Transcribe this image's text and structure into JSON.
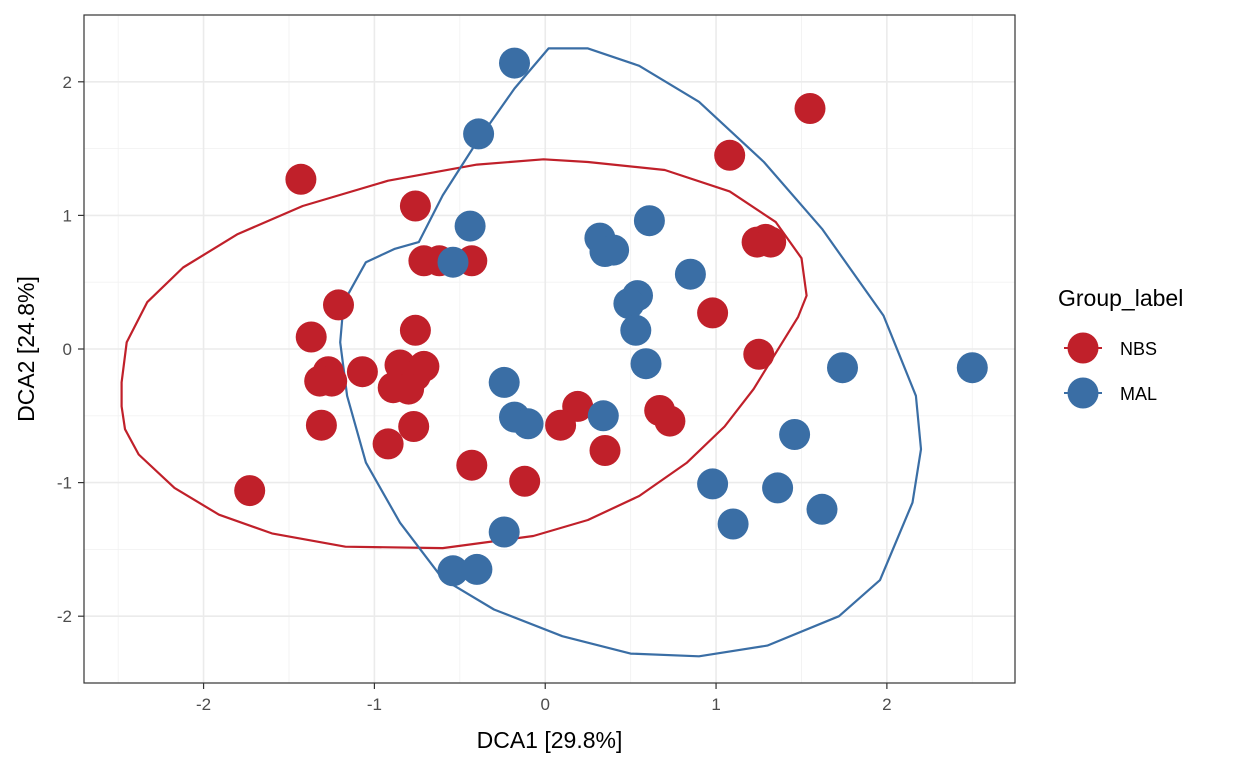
{
  "chart_data": {
    "type": "scatter",
    "xlabel": "DCA1   [29.8%]",
    "ylabel": "DCA2   [24.8%]",
    "xlim": [
      -2.7,
      2.75
    ],
    "ylim": [
      -2.5,
      2.5
    ],
    "x_ticks": [
      -2,
      -1,
      0,
      1,
      2
    ],
    "y_ticks": [
      -2,
      -1,
      0,
      1,
      2
    ],
    "x_tick_labels": [
      "-2",
      "-1",
      "0",
      "1",
      "2"
    ],
    "y_tick_labels": [
      "-2",
      "-1",
      "0",
      "1",
      "2"
    ],
    "grid": true,
    "legend": {
      "title": "Group_label",
      "position": "right"
    },
    "series": [
      {
        "name": "NBS",
        "color": "#c0202a",
        "points": [
          [
            1.55,
            1.8
          ],
          [
            1.08,
            1.45
          ],
          [
            -1.43,
            1.27
          ],
          [
            -0.76,
            1.07
          ],
          [
            1.24,
            0.8
          ],
          [
            1.29,
            0.82
          ],
          [
            1.32,
            0.8
          ],
          [
            -0.71,
            0.66
          ],
          [
            -0.62,
            0.66
          ],
          [
            -0.43,
            0.66
          ],
          [
            -1.21,
            0.33
          ],
          [
            0.98,
            0.27
          ],
          [
            -1.37,
            0.09
          ],
          [
            -0.76,
            0.14
          ],
          [
            1.25,
            -0.04
          ],
          [
            -1.27,
            -0.17
          ],
          [
            -0.85,
            -0.12
          ],
          [
            -0.71,
            -0.13
          ],
          [
            -1.07,
            -0.17
          ],
          [
            -1.32,
            -0.24
          ],
          [
            -1.25,
            -0.24
          ],
          [
            -0.76,
            -0.2
          ],
          [
            -0.89,
            -0.29
          ],
          [
            -0.8,
            -0.3
          ],
          [
            0.19,
            -0.43
          ],
          [
            0.67,
            -0.46
          ],
          [
            0.73,
            -0.54
          ],
          [
            -1.31,
            -0.57
          ],
          [
            -0.77,
            -0.58
          ],
          [
            0.09,
            -0.57
          ],
          [
            -0.92,
            -0.71
          ],
          [
            0.35,
            -0.76
          ],
          [
            -0.43,
            -0.87
          ],
          [
            -0.12,
            -0.99
          ],
          [
            -1.73,
            -1.06
          ]
        ]
      },
      {
        "name": "MAL",
        "color": "#3a6ea5",
        "points": [
          [
            -0.18,
            2.14
          ],
          [
            -0.39,
            1.61
          ],
          [
            0.61,
            0.96
          ],
          [
            -0.44,
            0.92
          ],
          [
            0.32,
            0.83
          ],
          [
            0.35,
            0.73
          ],
          [
            0.4,
            0.74
          ],
          [
            -0.54,
            0.65
          ],
          [
            0.85,
            0.56
          ],
          [
            0.54,
            0.4
          ],
          [
            0.49,
            0.34
          ],
          [
            0.53,
            0.14
          ],
          [
            0.59,
            -0.11
          ],
          [
            1.74,
            -0.14
          ],
          [
            2.5,
            -0.14
          ],
          [
            -0.24,
            -0.25
          ],
          [
            -0.18,
            -0.51
          ],
          [
            -0.1,
            -0.56
          ],
          [
            0.34,
            -0.5
          ],
          [
            1.46,
            -0.64
          ],
          [
            0.98,
            -1.01
          ],
          [
            1.36,
            -1.04
          ],
          [
            1.62,
            -1.2
          ],
          [
            1.1,
            -1.31
          ],
          [
            -0.24,
            -1.37
          ],
          [
            -0.54,
            -1.66
          ],
          [
            -0.4,
            -1.65
          ]
        ]
      }
    ],
    "ellipses": [
      {
        "series": "NBS",
        "color": "#c0202a",
        "points": [
          [
            -2.48,
            -0.43
          ],
          [
            -2.46,
            -0.6
          ],
          [
            -2.38,
            -0.79
          ],
          [
            -2.17,
            -1.04
          ],
          [
            -1.91,
            -1.24
          ],
          [
            -1.6,
            -1.38
          ],
          [
            -1.17,
            -1.48
          ],
          [
            -0.6,
            -1.49
          ],
          [
            -0.07,
            -1.4
          ],
          [
            0.25,
            -1.28
          ],
          [
            0.55,
            -1.1
          ],
          [
            0.83,
            -0.85
          ],
          [
            1.05,
            -0.58
          ],
          [
            1.22,
            -0.3
          ],
          [
            1.33,
            -0.07
          ],
          [
            1.48,
            0.24
          ],
          [
            1.53,
            0.4
          ],
          [
            1.5,
            0.68
          ],
          [
            1.35,
            0.95
          ],
          [
            1.08,
            1.18
          ],
          [
            0.7,
            1.34
          ],
          [
            0.25,
            1.4
          ],
          [
            -0.01,
            1.42
          ],
          [
            -0.4,
            1.38
          ],
          [
            -0.92,
            1.26
          ],
          [
            -1.42,
            1.07
          ],
          [
            -1.8,
            0.86
          ],
          [
            -2.12,
            0.61
          ],
          [
            -2.33,
            0.35
          ],
          [
            -2.45,
            0.05
          ],
          [
            -2.48,
            -0.25
          ],
          [
            -2.48,
            -0.43
          ]
        ]
      },
      {
        "series": "MAL",
        "color": "#3a6ea5",
        "points": [
          [
            -0.74,
            0.8
          ],
          [
            -0.6,
            1.15
          ],
          [
            -0.4,
            1.55
          ],
          [
            -0.18,
            1.95
          ],
          [
            0.02,
            2.25
          ],
          [
            0.25,
            2.25
          ],
          [
            0.55,
            2.12
          ],
          [
            0.9,
            1.85
          ],
          [
            1.28,
            1.4
          ],
          [
            1.62,
            0.9
          ],
          [
            1.98,
            0.25
          ],
          [
            2.17,
            -0.35
          ],
          [
            2.2,
            -0.75
          ],
          [
            2.15,
            -1.15
          ],
          [
            1.96,
            -1.73
          ],
          [
            1.72,
            -2.0
          ],
          [
            1.3,
            -2.22
          ],
          [
            0.9,
            -2.3
          ],
          [
            0.5,
            -2.28
          ],
          [
            0.1,
            -2.15
          ],
          [
            -0.3,
            -1.95
          ],
          [
            -0.6,
            -1.72
          ],
          [
            -0.85,
            -1.3
          ],
          [
            -1.05,
            -0.85
          ],
          [
            -1.16,
            -0.35
          ],
          [
            -1.2,
            0.05
          ],
          [
            -1.18,
            0.35
          ],
          [
            -1.05,
            0.65
          ],
          [
            -0.88,
            0.75
          ],
          [
            -0.74,
            0.8
          ]
        ]
      }
    ]
  }
}
